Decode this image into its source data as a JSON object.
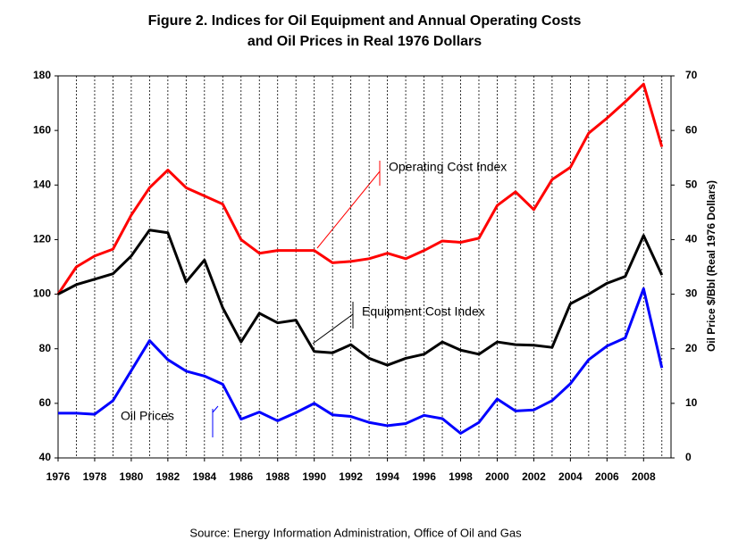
{
  "chart_data": {
    "type": "line",
    "title": [
      "Figure 2. Indices for Oil Equipment and Annual Operating Costs",
      "and Oil Prices in Real 1976 Dollars"
    ],
    "y2label": "Oil Price $/Bbl (Real 1976 Dollars)",
    "source": "Source: Energy Information Administration, Office of Oil and Gas",
    "x": [
      1976,
      1977,
      1978,
      1979,
      1980,
      1981,
      1982,
      1983,
      1984,
      1985,
      1986,
      1987,
      1988,
      1989,
      1990,
      1991,
      1992,
      1993,
      1994,
      1995,
      1996,
      1997,
      1998,
      1999,
      2000,
      2001,
      2002,
      2003,
      2004,
      2005,
      2006,
      2007,
      2008,
      2009
    ],
    "xlim": [
      1976,
      2009.5
    ],
    "xticks": [
      1976,
      1978,
      1980,
      1982,
      1984,
      1986,
      1988,
      1990,
      1992,
      1994,
      1996,
      1998,
      2000,
      2002,
      2004,
      2006,
      2008
    ],
    "ylim": [
      40,
      180
    ],
    "yticks": [
      40,
      60,
      80,
      100,
      120,
      140,
      160,
      180
    ],
    "y2lim": [
      0,
      70
    ],
    "y2ticks": [
      0,
      10,
      20,
      30,
      40,
      50,
      60,
      70
    ],
    "grid": "x",
    "series": [
      {
        "name": "Operating Cost Index",
        "color": "#ff0000",
        "values": [
          100,
          110,
          114,
          116.5,
          129,
          139,
          145.5,
          139,
          136,
          133,
          120,
          115,
          116,
          116,
          116,
          111.5,
          112,
          113,
          115,
          113,
          116,
          119.5,
          119,
          120.5,
          132.5,
          137.5,
          131,
          142,
          146.5,
          159,
          164.5,
          170.5,
          177,
          154
        ]
      },
      {
        "name": "Equipment Cost Index",
        "color": "#000000",
        "values": [
          100,
          103.5,
          105.5,
          107.5,
          114,
          123.5,
          122.5,
          104.5,
          112.5,
          95,
          82.5,
          93,
          89.5,
          90.5,
          79,
          78.5,
          81.5,
          76.5,
          74,
          76.5,
          78,
          82.5,
          79.5,
          78,
          82.5,
          81.5,
          81.3,
          80.5,
          96.5,
          100,
          104,
          106.5,
          121.5,
          107
        ]
      },
      {
        "name": "Oil Prices",
        "color": "#0000ff",
        "axis": "y2",
        "values": [
          8.2,
          8.2,
          8,
          10.5,
          16,
          21.5,
          18,
          15.9,
          15,
          13.5,
          7.1,
          8.4,
          6.8,
          8.3,
          10,
          7.9,
          7.6,
          6.5,
          5.9,
          6.3,
          7.8,
          7.2,
          4.5,
          6.5,
          10.8,
          8.6,
          8.8,
          10.5,
          13.6,
          18,
          20.5,
          22,
          31,
          16.5
        ]
      }
    ]
  }
}
